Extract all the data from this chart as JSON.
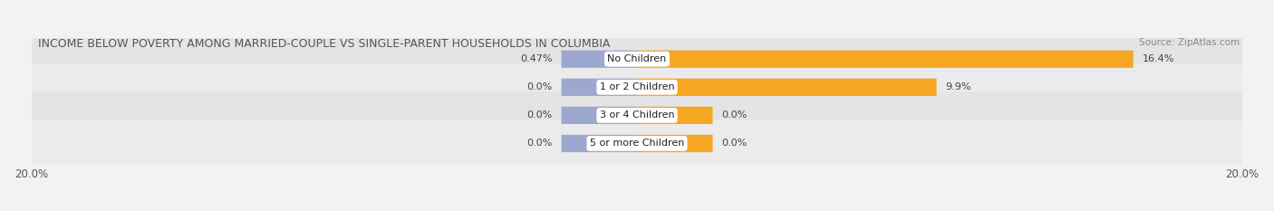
{
  "title": "INCOME BELOW POVERTY AMONG MARRIED-COUPLE VS SINGLE-PARENT HOUSEHOLDS IN COLUMBIA",
  "source": "Source: ZipAtlas.com",
  "categories": [
    "No Children",
    "1 or 2 Children",
    "3 or 4 Children",
    "5 or more Children"
  ],
  "married_values": [
    0.47,
    0.0,
    0.0,
    0.0
  ],
  "single_values": [
    16.4,
    9.9,
    0.0,
    0.0
  ],
  "married_color": "#9da8d0",
  "single_color": "#f5a623",
  "xlim_left": -20,
  "xlim_right": 20,
  "background_color": "#f2f2f2",
  "row_bg_even": "#e8e8e8",
  "row_bg_odd": "#f0f0f0",
  "title_fontsize": 9.0,
  "source_fontsize": 7.5,
  "tick_fontsize": 8.5,
  "bar_label_fontsize": 8.0,
  "category_fontsize": 8.0,
  "min_bar_width": 2.5
}
